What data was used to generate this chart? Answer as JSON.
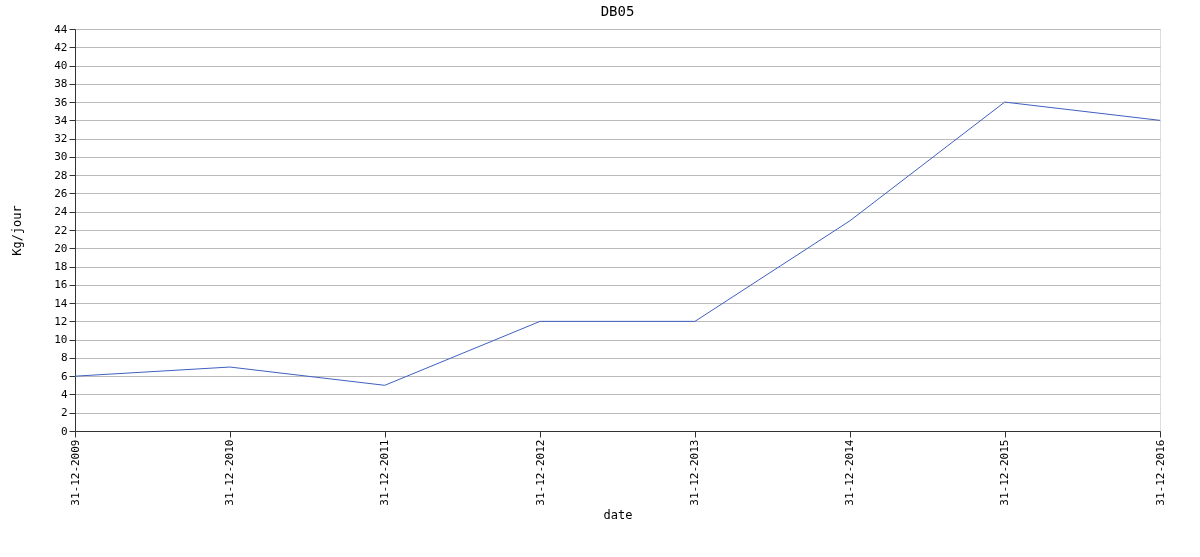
{
  "chart_data": {
    "type": "line",
    "title": "DB05",
    "xlabel": "date",
    "ylabel": "Kg/jour",
    "x": [
      "2009-12-31",
      "2010-12-31",
      "2011-12-31",
      "2012-12-31",
      "2013-12-31",
      "2014-12-31",
      "2015-12-31",
      "2016-12-31"
    ],
    "series": [
      {
        "color": "#4060c0",
        "values": [
          6,
          7,
          5,
          12,
          12,
          23,
          36,
          34
        ]
      }
    ],
    "xlim": [
      "2009-12-31",
      "2016-12-31"
    ],
    "xticks": [
      {
        "value": "2009-12-31",
        "label": "31-12-2009"
      },
      {
        "value": "2010-12-31",
        "label": "31-12-2010"
      },
      {
        "value": "2011-12-31",
        "label": "31-12-2011"
      },
      {
        "value": "2012-12-31",
        "label": "31-12-2012"
      },
      {
        "value": "2013-12-31",
        "label": "31-12-2013"
      },
      {
        "value": "2014-12-31",
        "label": "31-12-2014"
      },
      {
        "value": "2015-12-31",
        "label": "31-12-2015"
      },
      {
        "value": "2016-12-31",
        "label": "31-12-2016"
      }
    ],
    "ylim": [
      0,
      44
    ],
    "yticks": [
      0,
      2,
      4,
      6,
      8,
      10,
      12,
      14,
      16,
      18,
      20,
      22,
      24,
      26,
      28,
      30,
      32,
      34,
      36,
      38,
      40,
      42,
      44
    ],
    "grid": "y",
    "marker": "none",
    "line_style": "solid"
  }
}
